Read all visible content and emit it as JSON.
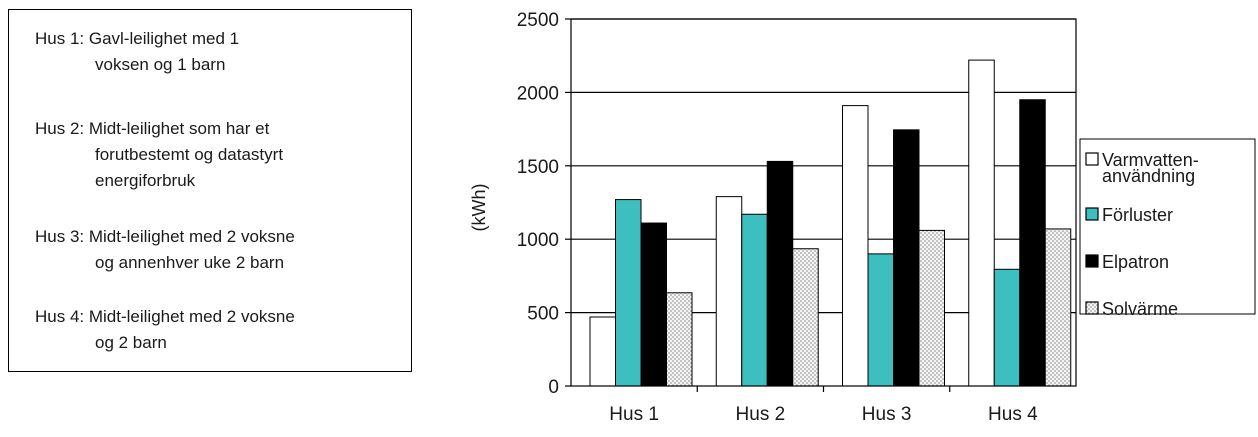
{
  "description": {
    "items": [
      {
        "lines": [
          "Hus 1: Gavl-leilighet med 1",
          "voksen og 1 barn"
        ]
      },
      {
        "lines": [
          "Hus 2: Midt-leilighet som har et",
          "forutbestemt og datastyrt",
          "energiforbruk"
        ]
      },
      {
        "lines": [
          "Hus 3: Midt-leilighet med 2 voksne",
          "og annenhver uke 2 barn"
        ]
      },
      {
        "lines": [
          "Hus 4: Midt-leilighet med 2 voksne",
          "og 2 barn"
        ]
      }
    ]
  },
  "chart_data": {
    "type": "bar",
    "title": "",
    "xlabel": "",
    "ylabel": "(kWh)",
    "ylim": [
      0,
      2500
    ],
    "yticks": [
      0,
      500,
      1000,
      1500,
      2000,
      2500
    ],
    "grid": true,
    "legend_position": "right",
    "categories": [
      "Hus 1",
      "Hus 2",
      "Hus 3",
      "Hus 4"
    ],
    "series": [
      {
        "name": "Varmvatten-\nanvändning",
        "fill": "white",
        "color": "#ffffff",
        "values": [
          470,
          1290,
          1910,
          2220
        ]
      },
      {
        "name": "Förluster",
        "fill": "solid",
        "color": "#3ebfbf",
        "values": [
          1270,
          1170,
          900,
          795
        ]
      },
      {
        "name": "Elpatron",
        "fill": "solid",
        "color": "#000000",
        "values": [
          1110,
          1530,
          1745,
          1950
        ]
      },
      {
        "name": "Solvärme",
        "fill": "dotted",
        "color": "#ececec",
        "values": [
          635,
          935,
          1060,
          1070
        ]
      }
    ]
  }
}
